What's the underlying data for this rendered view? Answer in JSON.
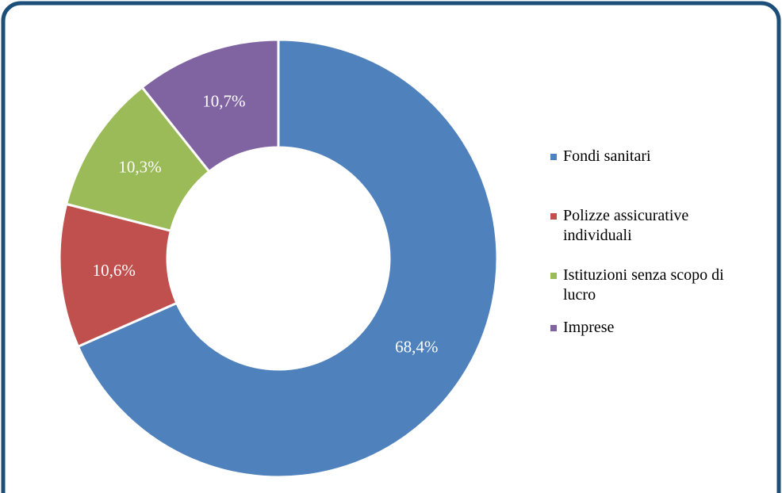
{
  "chart_data": {
    "type": "donut",
    "categories": [
      "Fondi sanitari",
      "Polizze assicurative individuali",
      "Istituzioni senza scopo di lucro",
      "Imprese"
    ],
    "values": [
      68.4,
      10.6,
      10.3,
      10.7
    ],
    "value_labels": [
      "68,4%",
      "10,6%",
      "10,3%",
      "10,7%"
    ],
    "colors": [
      "#4f81bd",
      "#c0504d",
      "#9bbb59",
      "#8064a2"
    ],
    "legend": "right"
  }
}
